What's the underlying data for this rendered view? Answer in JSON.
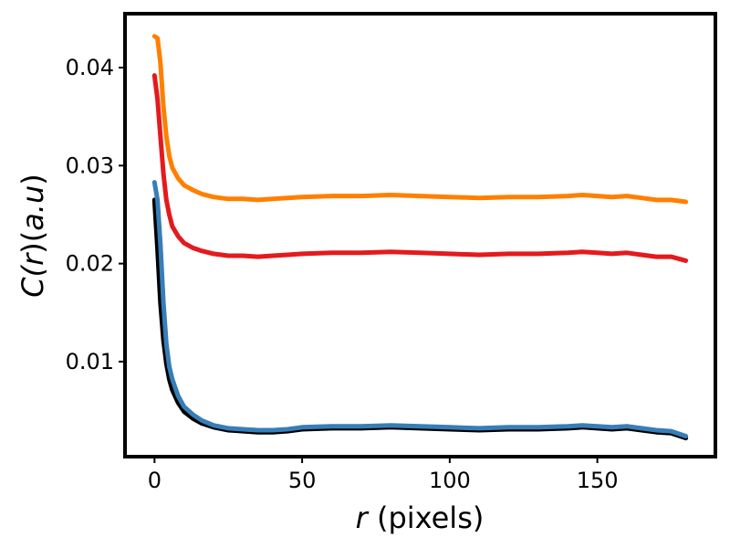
{
  "chart_data": {
    "type": "line",
    "title": "",
    "xlabel": "r (pixels)",
    "xlabel_var": "r",
    "xlabel_unit": "(pixels)",
    "ylabel": "C(r)(a.u)",
    "ylabel_parts": [
      "C(",
      "r",
      ")(",
      "a.u",
      ")"
    ],
    "xlim": [
      -10,
      190
    ],
    "ylim": [
      0.0003,
      0.0455
    ],
    "xticks": [
      0,
      50,
      100,
      150
    ],
    "xtick_labels": [
      "0",
      "50",
      "100",
      "150"
    ],
    "yticks": [
      0.01,
      0.02,
      0.03,
      0.04
    ],
    "ytick_labels": [
      "0.01",
      "0.02",
      "0.03",
      "0.04"
    ],
    "grid": false,
    "legend": "none",
    "series": [
      {
        "color": "#000000",
        "points": [
          [
            0,
            0.0265
          ],
          [
            1,
            0.0215
          ],
          [
            2,
            0.016
          ],
          [
            3,
            0.0122
          ],
          [
            4,
            0.0098
          ],
          [
            5,
            0.0082
          ],
          [
            6,
            0.0071
          ],
          [
            8,
            0.0058
          ],
          [
            10,
            0.0049
          ],
          [
            13,
            0.0042
          ],
          [
            16,
            0.0037
          ],
          [
            20,
            0.0033
          ],
          [
            25,
            0.003
          ],
          [
            30,
            0.0029
          ],
          [
            35,
            0.0028
          ],
          [
            40,
            0.0028
          ],
          [
            45,
            0.0029
          ],
          [
            50,
            0.0031
          ],
          [
            60,
            0.0032
          ],
          [
            70,
            0.0032
          ],
          [
            80,
            0.0033
          ],
          [
            90,
            0.0032
          ],
          [
            100,
            0.0031
          ],
          [
            110,
            0.003
          ],
          [
            120,
            0.0031
          ],
          [
            130,
            0.0031
          ],
          [
            140,
            0.0032
          ],
          [
            145,
            0.0033
          ],
          [
            150,
            0.0032
          ],
          [
            155,
            0.0031
          ],
          [
            160,
            0.0032
          ],
          [
            165,
            0.003
          ],
          [
            170,
            0.0028
          ],
          [
            175,
            0.0027
          ],
          [
            180,
            0.0022
          ]
        ]
      },
      {
        "color": "#377eb8",
        "points": [
          [
            0,
            0.0283
          ],
          [
            1,
            0.0265
          ],
          [
            2,
            0.022
          ],
          [
            3,
            0.016
          ],
          [
            4,
            0.0118
          ],
          [
            5,
            0.0095
          ],
          [
            6,
            0.0082
          ],
          [
            8,
            0.0065
          ],
          [
            10,
            0.0054
          ],
          [
            13,
            0.0046
          ],
          [
            16,
            0.004
          ],
          [
            20,
            0.0035
          ],
          [
            25,
            0.0032
          ],
          [
            30,
            0.0031
          ],
          [
            35,
            0.003
          ],
          [
            40,
            0.003
          ],
          [
            45,
            0.0031
          ],
          [
            50,
            0.0033
          ],
          [
            60,
            0.0034
          ],
          [
            70,
            0.0034
          ],
          [
            80,
            0.0035
          ],
          [
            90,
            0.0034
          ],
          [
            100,
            0.0033
          ],
          [
            110,
            0.0032
          ],
          [
            120,
            0.0033
          ],
          [
            130,
            0.0033
          ],
          [
            140,
            0.0034
          ],
          [
            145,
            0.0035
          ],
          [
            150,
            0.0034
          ],
          [
            155,
            0.0033
          ],
          [
            160,
            0.0034
          ],
          [
            165,
            0.0032
          ],
          [
            170,
            0.003
          ],
          [
            175,
            0.0029
          ],
          [
            180,
            0.0024
          ]
        ]
      },
      {
        "color": "#e41a1c",
        "points": [
          [
            0,
            0.0392
          ],
          [
            1,
            0.0368
          ],
          [
            2,
            0.033
          ],
          [
            3,
            0.0292
          ],
          [
            4,
            0.0265
          ],
          [
            5,
            0.025
          ],
          [
            6,
            0.0238
          ],
          [
            8,
            0.0228
          ],
          [
            10,
            0.0221
          ],
          [
            13,
            0.0216
          ],
          [
            16,
            0.0213
          ],
          [
            20,
            0.021
          ],
          [
            25,
            0.0208
          ],
          [
            30,
            0.0208
          ],
          [
            35,
            0.0207
          ],
          [
            40,
            0.0208
          ],
          [
            45,
            0.0209
          ],
          [
            50,
            0.021
          ],
          [
            60,
            0.0211
          ],
          [
            70,
            0.0211
          ],
          [
            80,
            0.0212
          ],
          [
            90,
            0.0211
          ],
          [
            100,
            0.021
          ],
          [
            110,
            0.0209
          ],
          [
            120,
            0.021
          ],
          [
            130,
            0.021
          ],
          [
            140,
            0.0211
          ],
          [
            145,
            0.0212
          ],
          [
            150,
            0.0211
          ],
          [
            155,
            0.021
          ],
          [
            160,
            0.0211
          ],
          [
            165,
            0.0209
          ],
          [
            170,
            0.0207
          ],
          [
            175,
            0.0207
          ],
          [
            180,
            0.0203
          ]
        ]
      },
      {
        "color": "#ff7f00",
        "points": [
          [
            0,
            0.0432
          ],
          [
            1,
            0.043
          ],
          [
            2,
            0.0405
          ],
          [
            3,
            0.036
          ],
          [
            4,
            0.033
          ],
          [
            5,
            0.031
          ],
          [
            6,
            0.0298
          ],
          [
            8,
            0.0287
          ],
          [
            10,
            0.028
          ],
          [
            13,
            0.0275
          ],
          [
            16,
            0.0271
          ],
          [
            20,
            0.0268
          ],
          [
            25,
            0.0266
          ],
          [
            30,
            0.0266
          ],
          [
            35,
            0.0265
          ],
          [
            40,
            0.0266
          ],
          [
            45,
            0.0267
          ],
          [
            50,
            0.0268
          ],
          [
            60,
            0.0269
          ],
          [
            70,
            0.0269
          ],
          [
            80,
            0.027
          ],
          [
            90,
            0.0269
          ],
          [
            100,
            0.0268
          ],
          [
            110,
            0.0267
          ],
          [
            120,
            0.0268
          ],
          [
            130,
            0.0268
          ],
          [
            140,
            0.0269
          ],
          [
            145,
            0.027
          ],
          [
            150,
            0.0269
          ],
          [
            155,
            0.0268
          ],
          [
            160,
            0.0269
          ],
          [
            165,
            0.0267
          ],
          [
            170,
            0.0265
          ],
          [
            175,
            0.0265
          ],
          [
            180,
            0.0263
          ]
        ]
      }
    ]
  }
}
